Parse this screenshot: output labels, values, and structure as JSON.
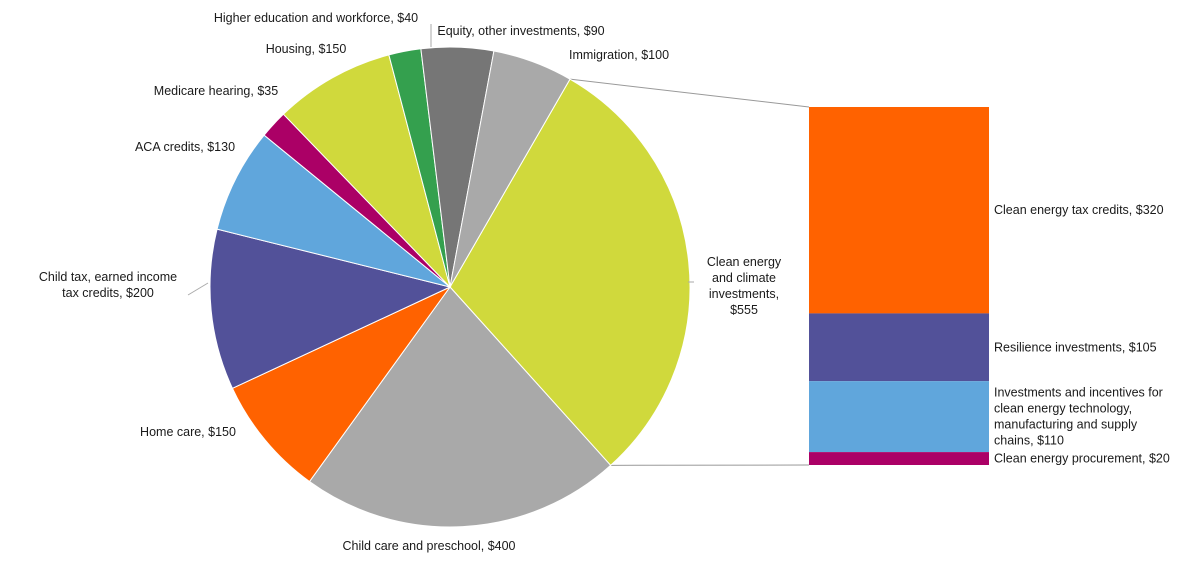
{
  "chart_data": {
    "type": "pie",
    "title": "",
    "unit": "$",
    "pie": {
      "slices": [
        {
          "label": "Clean energy and climate investments, $555",
          "value": 555,
          "color": "#d0d93c"
        },
        {
          "label": "Child care and preschool, $400",
          "value": 400,
          "color": "#a9a9a9"
        },
        {
          "label": "Home care, $150",
          "value": 150,
          "color": "#ff6200"
        },
        {
          "label": "Child tax, earned income tax credits, $200",
          "value": 200,
          "color": "#525199"
        },
        {
          "label": "ACA credits, $130",
          "value": 130,
          "color": "#60a6dc"
        },
        {
          "label": "Medicare hearing, $35",
          "value": 35,
          "color": "#ab0066"
        },
        {
          "label": "Housing, $150",
          "value": 150,
          "color": "#d0d93c"
        },
        {
          "label": "Higher education and workforce, $40",
          "value": 40,
          "color": "#34a04e"
        },
        {
          "label": "Equity, other investments, $90",
          "value": 90,
          "color": "#767676"
        },
        {
          "label": "Immigration, $100",
          "value": 100,
          "color": "#a9a9a9"
        }
      ]
    },
    "breakdown": {
      "of": "Clean energy and climate investments, $555",
      "segments": [
        {
          "label": "Clean energy tax credits, $320",
          "value": 320,
          "color": "#ff6200"
        },
        {
          "label": "Resilience investments, $105",
          "value": 105,
          "color": "#525199"
        },
        {
          "label": "Investments and incentives for clean energy technology, manufacturing and supply chains, $110",
          "value": 110,
          "color": "#60a6dc"
        },
        {
          "label": "Clean energy procurement, $20",
          "value": 20,
          "color": "#ab0066"
        }
      ]
    }
  }
}
